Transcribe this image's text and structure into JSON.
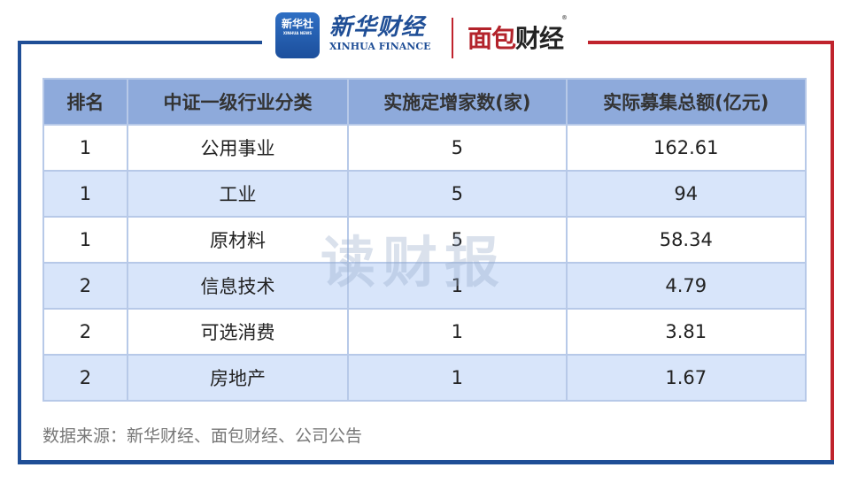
{
  "logos": {
    "xinhua_news": {
      "cn": "新华社",
      "en": "XINHUA NEWS"
    },
    "xinhua_finance": {
      "cn": "新华财经",
      "en": "XINHUA FINANCE"
    },
    "mianbao": {
      "red": "面包",
      "dark": "财经",
      "reg": "®"
    }
  },
  "colors": {
    "frame_blue": "#1f4e96",
    "frame_red": "#c0232d",
    "header_bg": "#8eaadb",
    "row_alt_bg": "#d8e5fa"
  },
  "table": {
    "headers": [
      "排名",
      "中证一级行业分类",
      "实施定增家数(家)",
      "实际募集总额(亿元)"
    ],
    "rows": [
      [
        "1",
        "公用事业",
        "5",
        "162.61"
      ],
      [
        "1",
        "工业",
        "5",
        "94"
      ],
      [
        "1",
        "原材料",
        "5",
        "58.34"
      ],
      [
        "2",
        "信息技术",
        "1",
        "4.79"
      ],
      [
        "2",
        "可选消费",
        "1",
        "3.81"
      ],
      [
        "2",
        "房地产",
        "1",
        "1.67"
      ]
    ]
  },
  "watermark": "读财报",
  "source": "数据来源：新华财经、面包财经、公司公告"
}
